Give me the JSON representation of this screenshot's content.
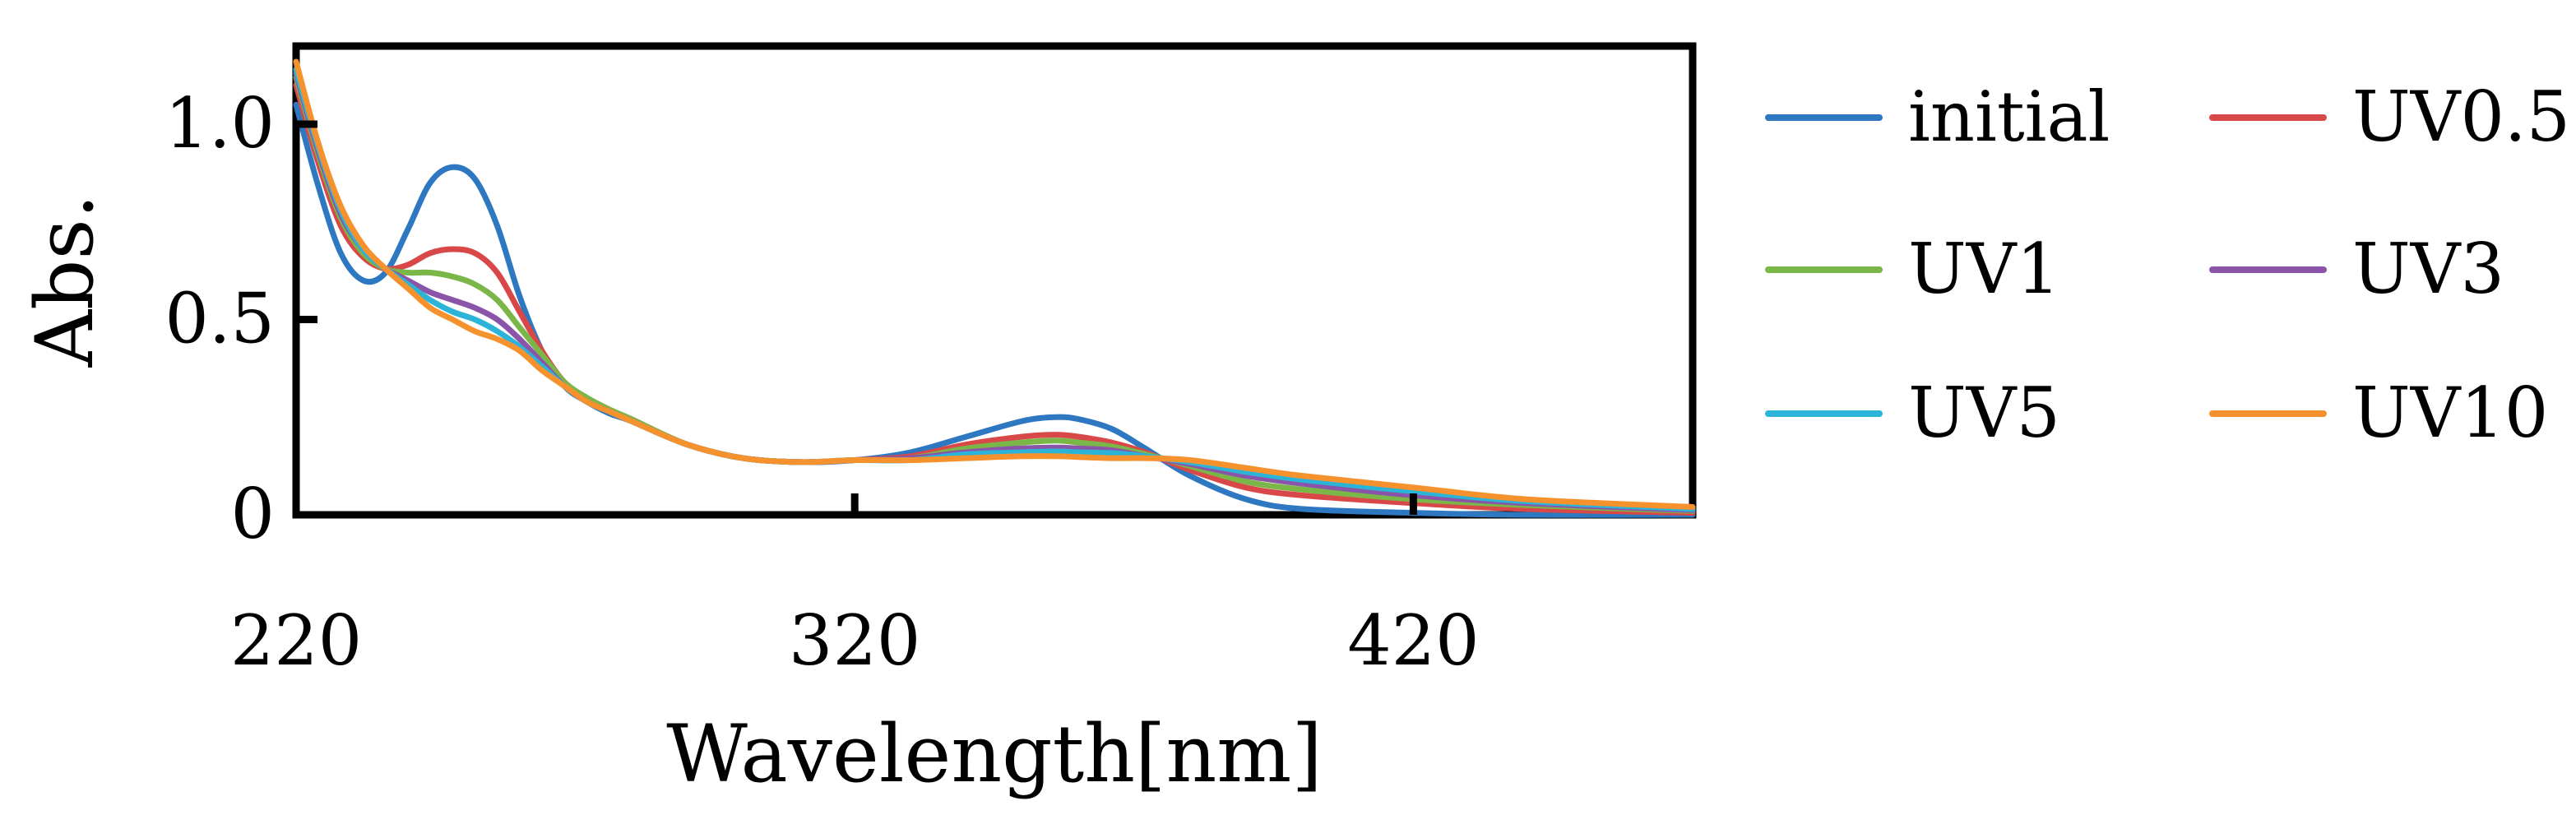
{
  "chart_data": {
    "type": "line",
    "title": "",
    "xlabel": "Wavelength[nm]",
    "ylabel": "Abs.",
    "xlim": [
      220,
      470
    ],
    "ylim": [
      0,
      1.2
    ],
    "x_ticks": [
      {
        "value": 220,
        "label": "220"
      },
      {
        "value": 320,
        "label": "320"
      },
      {
        "value": 420,
        "label": "420"
      }
    ],
    "y_ticks": [
      {
        "value": 0,
        "label": "0"
      },
      {
        "value": 0.5,
        "label": "0.5"
      },
      {
        "value": 1.0,
        "label": "1.0"
      }
    ],
    "grid": false,
    "legend_position": "right",
    "series": [
      {
        "name": "initial",
        "color": "#2e78c2",
        "x": [
          220,
          224,
          228,
          232,
          236,
          240,
          244,
          248,
          252,
          256,
          260,
          264,
          268,
          272,
          276,
          280,
          290,
          300,
          310,
          320,
          330,
          340,
          350,
          356,
          360,
          366,
          372,
          380,
          390,
          400,
          420,
          440,
          470
        ],
        "y": [
          1.05,
          0.84,
          0.67,
          0.6,
          0.62,
          0.73,
          0.85,
          0.89,
          0.86,
          0.74,
          0.56,
          0.42,
          0.33,
          0.29,
          0.26,
          0.24,
          0.18,
          0.145,
          0.135,
          0.14,
          0.16,
          0.2,
          0.24,
          0.25,
          0.245,
          0.22,
          0.17,
          0.1,
          0.04,
          0.015,
          0.005,
          0.0,
          0.0
        ]
      },
      {
        "name": "UV0.5",
        "color": "#d94848",
        "x": [
          220,
          224,
          228,
          232,
          236,
          240,
          244,
          248,
          252,
          256,
          260,
          264,
          268,
          272,
          276,
          280,
          290,
          300,
          310,
          320,
          330,
          340,
          350,
          356,
          360,
          366,
          372,
          380,
          390,
          400,
          420,
          440,
          470
        ],
        "y": [
          1.1,
          0.9,
          0.74,
          0.66,
          0.63,
          0.64,
          0.67,
          0.68,
          0.67,
          0.62,
          0.52,
          0.42,
          0.34,
          0.3,
          0.27,
          0.245,
          0.18,
          0.145,
          0.135,
          0.14,
          0.15,
          0.18,
          0.2,
          0.205,
          0.2,
          0.185,
          0.16,
          0.115,
          0.07,
          0.05,
          0.03,
          0.015,
          0.005
        ]
      },
      {
        "name": "UV1",
        "color": "#7ab648",
        "x": [
          220,
          224,
          228,
          232,
          236,
          240,
          244,
          248,
          252,
          256,
          260,
          264,
          268,
          272,
          276,
          280,
          290,
          300,
          310,
          320,
          330,
          340,
          350,
          356,
          360,
          366,
          372,
          380,
          390,
          400,
          420,
          440,
          470
        ],
        "y": [
          1.12,
          0.92,
          0.76,
          0.67,
          0.63,
          0.62,
          0.62,
          0.61,
          0.59,
          0.55,
          0.48,
          0.41,
          0.34,
          0.3,
          0.27,
          0.245,
          0.18,
          0.145,
          0.135,
          0.14,
          0.145,
          0.17,
          0.185,
          0.19,
          0.185,
          0.175,
          0.155,
          0.125,
          0.085,
          0.065,
          0.04,
          0.025,
          0.01
        ]
      },
      {
        "name": "UV3",
        "color": "#8a55a8",
        "x": [
          220,
          224,
          228,
          232,
          236,
          240,
          244,
          248,
          252,
          256,
          260,
          264,
          268,
          272,
          276,
          280,
          290,
          300,
          310,
          320,
          330,
          340,
          350,
          356,
          360,
          366,
          372,
          380,
          390,
          400,
          420,
          440,
          470
        ],
        "y": [
          1.13,
          0.93,
          0.77,
          0.68,
          0.63,
          0.6,
          0.57,
          0.55,
          0.53,
          0.5,
          0.45,
          0.39,
          0.33,
          0.29,
          0.265,
          0.24,
          0.18,
          0.145,
          0.135,
          0.14,
          0.145,
          0.16,
          0.17,
          0.172,
          0.17,
          0.165,
          0.15,
          0.13,
          0.1,
          0.08,
          0.05,
          0.03,
          0.012
        ]
      },
      {
        "name": "UV5",
        "color": "#2bb4d8",
        "x": [
          220,
          224,
          228,
          232,
          236,
          240,
          244,
          248,
          252,
          256,
          260,
          264,
          268,
          272,
          276,
          280,
          290,
          300,
          310,
          320,
          330,
          340,
          350,
          356,
          360,
          366,
          372,
          380,
          390,
          400,
          420,
          440,
          470
        ],
        "y": [
          1.14,
          0.94,
          0.78,
          0.68,
          0.63,
          0.59,
          0.55,
          0.52,
          0.5,
          0.47,
          0.43,
          0.38,
          0.33,
          0.29,
          0.265,
          0.24,
          0.18,
          0.145,
          0.135,
          0.14,
          0.14,
          0.155,
          0.16,
          0.162,
          0.16,
          0.158,
          0.15,
          0.135,
          0.11,
          0.09,
          0.06,
          0.035,
          0.015
        ]
      },
      {
        "name": "UV10",
        "color": "#f5922e",
        "x": [
          220,
          224,
          228,
          232,
          236,
          240,
          244,
          248,
          252,
          256,
          260,
          264,
          268,
          272,
          276,
          280,
          290,
          300,
          310,
          320,
          330,
          340,
          350,
          356,
          360,
          366,
          372,
          380,
          390,
          400,
          420,
          440,
          470
        ],
        "y": [
          1.16,
          0.95,
          0.79,
          0.69,
          0.63,
          0.58,
          0.53,
          0.5,
          0.47,
          0.45,
          0.42,
          0.37,
          0.33,
          0.29,
          0.265,
          0.24,
          0.18,
          0.145,
          0.135,
          0.14,
          0.14,
          0.145,
          0.15,
          0.15,
          0.148,
          0.145,
          0.145,
          0.14,
          0.12,
          0.1,
          0.07,
          0.04,
          0.02
        ]
      }
    ]
  }
}
